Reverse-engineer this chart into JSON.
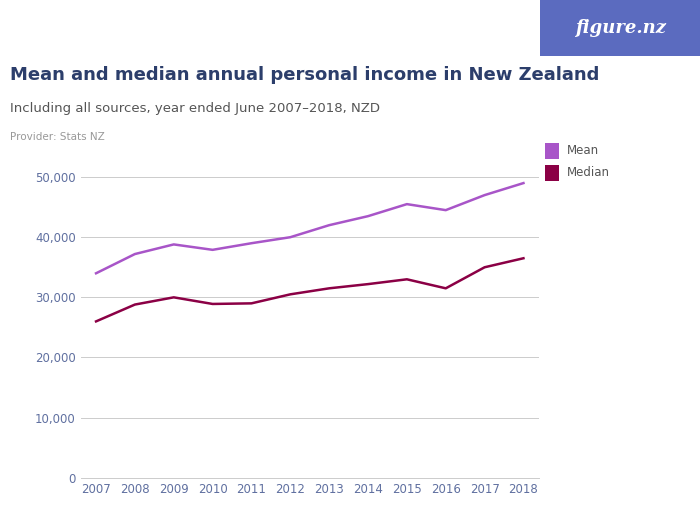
{
  "title": "Mean and median annual personal income in New Zealand",
  "subtitle": "Including all sources, year ended June 2007–2018, NZD",
  "provider": "Provider: Stats NZ",
  "years": [
    2007,
    2008,
    2009,
    2010,
    2011,
    2012,
    2013,
    2014,
    2015,
    2016,
    2017,
    2018
  ],
  "mean": [
    34000,
    37200,
    38800,
    37900,
    39000,
    40000,
    42000,
    43500,
    45500,
    44500,
    47000,
    49000
  ],
  "median": [
    26000,
    28800,
    30000,
    28900,
    29000,
    30500,
    31500,
    32200,
    33000,
    31500,
    35000,
    36500
  ],
  "mean_color": "#a855c8",
  "median_color": "#8b0045",
  "ylim": [
    0,
    55000
  ],
  "yticks": [
    0,
    10000,
    20000,
    30000,
    40000,
    50000
  ],
  "ytick_labels": [
    "0",
    "10,000",
    "20,000",
    "30,000",
    "40,000",
    "50,000"
  ],
  "background_color": "#ffffff",
  "grid_color": "#cccccc",
  "logo_bg_color": "#5b6bbf",
  "logo_text": "figure.nz",
  "title_color": "#2c3e6b",
  "subtitle_color": "#555555",
  "provider_color": "#999999",
  "tick_color": "#6070a0",
  "title_fontsize": 13,
  "subtitle_fontsize": 9.5,
  "provider_fontsize": 7.5,
  "axis_fontsize": 8.5,
  "legend_fontsize": 8.5
}
